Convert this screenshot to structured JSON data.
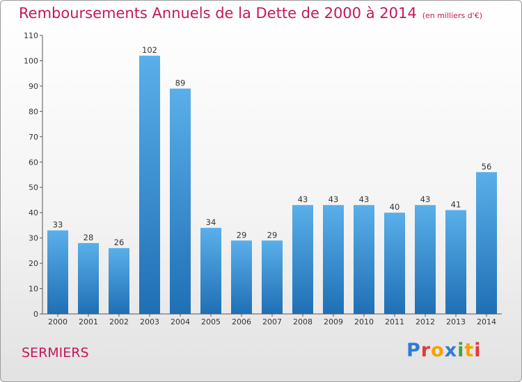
{
  "header": {
    "title": "Remboursements Annuels de la Dette de 2000 à 2014",
    "unit": "(en milliers d'€)"
  },
  "footer": {
    "town": "SERMIERS",
    "logo_letters": [
      {
        "ch": "P",
        "color": "#2e7bd6"
      },
      {
        "ch": "r",
        "color": "#e53935"
      },
      {
        "ch": "o",
        "color": "#f4a300"
      },
      {
        "ch": "x",
        "color": "#2e7bd6"
      },
      {
        "ch": "i",
        "color": "#43a047"
      },
      {
        "ch": "t",
        "color": "#f4a300"
      },
      {
        "ch": "i",
        "color": "#e53935"
      }
    ]
  },
  "colors": {
    "title": "#c2185b",
    "bar_top": "#5aafe9",
    "bar_bottom": "#1f6fb5"
  },
  "chart_data": {
    "type": "bar",
    "title": "Remboursements Annuels de la Dette de 2000 à 2014",
    "subtitle": "(en milliers d'€)",
    "xlabel": "",
    "ylabel": "",
    "categories": [
      "2000",
      "2001",
      "2002",
      "2003",
      "2004",
      "2005",
      "2006",
      "2007",
      "2008",
      "2009",
      "2010",
      "2011",
      "2012",
      "2013",
      "2014"
    ],
    "values": [
      33,
      28,
      26,
      102,
      89,
      34,
      29,
      29,
      43,
      43,
      43,
      40,
      43,
      41,
      56
    ],
    "ylim": [
      0,
      110
    ],
    "yticks": [
      0,
      10,
      20,
      30,
      40,
      50,
      60,
      70,
      80,
      90,
      100,
      110
    ],
    "grid": false,
    "legend": "none"
  }
}
